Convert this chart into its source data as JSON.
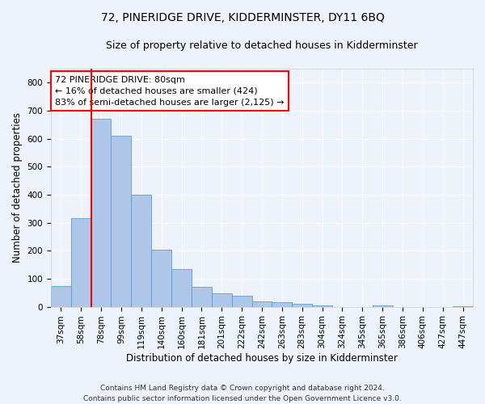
{
  "title": "72, PINERIDGE DRIVE, KIDDERMINSTER, DY11 6BQ",
  "subtitle": "Size of property relative to detached houses in Kidderminster",
  "xlabel": "Distribution of detached houses by size in Kidderminster",
  "ylabel": "Number of detached properties",
  "bar_labels": [
    "37sqm",
    "58sqm",
    "78sqm",
    "99sqm",
    "119sqm",
    "140sqm",
    "160sqm",
    "181sqm",
    "201sqm",
    "222sqm",
    "242sqm",
    "263sqm",
    "283sqm",
    "304sqm",
    "324sqm",
    "345sqm",
    "365sqm",
    "386sqm",
    "406sqm",
    "427sqm",
    "447sqm"
  ],
  "bar_values": [
    75,
    315,
    670,
    610,
    400,
    205,
    135,
    70,
    48,
    38,
    20,
    17,
    10,
    5,
    0,
    0,
    5,
    0,
    0,
    0,
    3
  ],
  "bar_color": "#aec6e8",
  "bar_edge_color": "#5a9fd4",
  "annotation_line1": "72 PINERIDGE DRIVE: 80sqm",
  "annotation_line2": "← 16% of detached houses are smaller (424)",
  "annotation_line3": "83% of semi-detached houses are larger (2,125) →",
  "annotation_box_color": "white",
  "annotation_box_edge_color": "red",
  "vline_color": "red",
  "vline_x": 1.5,
  "ylim": [
    0,
    850
  ],
  "yticks": [
    0,
    100,
    200,
    300,
    400,
    500,
    600,
    700,
    800
  ],
  "footer": "Contains HM Land Registry data © Crown copyright and database right 2024.\nContains public sector information licensed under the Open Government Licence v3.0.",
  "background_color": "#eef2fa",
  "plot_bg_color": "#eef2fa",
  "grid_color": "white",
  "title_fontsize": 10,
  "subtitle_fontsize": 9,
  "label_fontsize": 8.5,
  "tick_fontsize": 7.5,
  "annotation_fontsize": 8,
  "footer_fontsize": 6.5
}
